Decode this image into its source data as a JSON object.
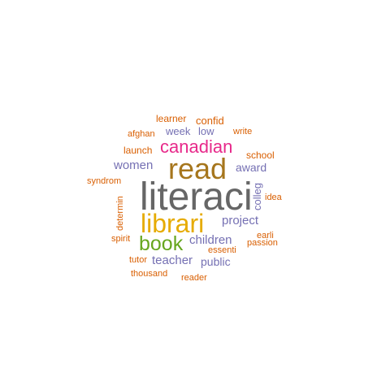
{
  "colors": {
    "gray": "#666666",
    "gold": "#a6761d",
    "yellow": "#e6ab02",
    "magenta": "#e7298a",
    "purple": "#7570b3",
    "green": "#66a61e",
    "orange": "#d95f02"
  },
  "words": [
    {
      "text": "literaci",
      "color": "gray",
      "vertical": false
    },
    {
      "text": "read",
      "color": "gold",
      "vertical": false
    },
    {
      "text": "librari",
      "color": "yellow",
      "vertical": false
    },
    {
      "text": "canadian",
      "color": "magenta",
      "vertical": false
    },
    {
      "text": "book",
      "color": "green",
      "vertical": false
    },
    {
      "text": "women",
      "color": "purple",
      "vertical": false
    },
    {
      "text": "project",
      "color": "purple",
      "vertical": false
    },
    {
      "text": "children",
      "color": "purple",
      "vertical": false
    },
    {
      "text": "teacher",
      "color": "purple",
      "vertical": false
    },
    {
      "text": "award",
      "color": "purple",
      "vertical": false
    },
    {
      "text": "public",
      "color": "purple",
      "vertical": false
    },
    {
      "text": "colleg",
      "color": "purple",
      "vertical": true
    },
    {
      "text": "week",
      "color": "purple",
      "vertical": false
    },
    {
      "text": "low",
      "color": "purple",
      "vertical": false
    },
    {
      "text": "learner",
      "color": "orange",
      "vertical": false
    },
    {
      "text": "confid",
      "color": "orange",
      "vertical": false
    },
    {
      "text": "afghan",
      "color": "orange",
      "vertical": false
    },
    {
      "text": "write",
      "color": "orange",
      "vertical": false
    },
    {
      "text": "launch",
      "color": "orange",
      "vertical": false
    },
    {
      "text": "school",
      "color": "orange",
      "vertical": false
    },
    {
      "text": "syndrom",
      "color": "orange",
      "vertical": false
    },
    {
      "text": "idea",
      "color": "orange",
      "vertical": false
    },
    {
      "text": "determin",
      "color": "orange",
      "vertical": true
    },
    {
      "text": "earli",
      "color": "orange",
      "vertical": false
    },
    {
      "text": "spirit",
      "color": "orange",
      "vertical": false
    },
    {
      "text": "passion",
      "color": "orange",
      "vertical": false
    },
    {
      "text": "essenti",
      "color": "orange",
      "vertical": false
    },
    {
      "text": "tutor",
      "color": "orange",
      "vertical": false
    },
    {
      "text": "thousand",
      "color": "orange",
      "vertical": false
    },
    {
      "text": "reader",
      "color": "orange",
      "vertical": false
    }
  ]
}
